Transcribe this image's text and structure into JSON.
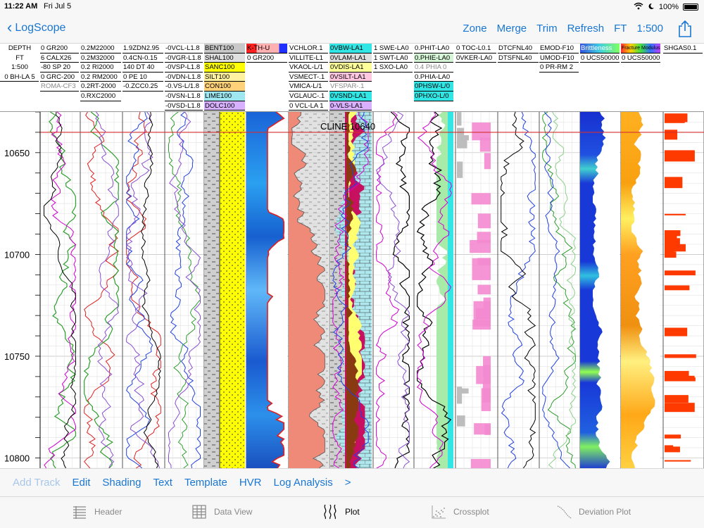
{
  "status_bar": {
    "time": "11:22 AM",
    "date": "Fri Jul 5",
    "battery": "100%"
  },
  "navbar": {
    "back_label": "LogScope",
    "actions": [
      "Zone",
      "Merge",
      "Trim",
      "Refresh",
      "FT",
      "1:500"
    ]
  },
  "depth_header": {
    "lines": [
      "DEPTH",
      "FT",
      "1:500",
      "0  BH-LA 5"
    ]
  },
  "header_columns": [
    {
      "cells": [
        "0     GR200",
        "6   CALX26",
        "-80    SP  20",
        "0  GRC-200",
        "ROMA-CF3"
      ]
    },
    {
      "cells": [
        "0.2M22000",
        "0.2M32000",
        "0.2   RI2000",
        "0.2   RM2000",
        "0.2RT-2000",
        "0.RXC2000"
      ]
    },
    {
      "cells": [
        "1.9ZDN2.95",
        "0.4CN-0.15",
        "140   DT   40",
        "0     PE    10",
        "-0.ZCC0.25"
      ]
    },
    {
      "cells": [
        "-0VCL-L1.8",
        "-0VGR-L1.8",
        "-0VSP-L1.8",
        "-0VDN-L1.8",
        "-0.VS-L/1.8",
        "-0VSN-L1.8",
        "-0VSD-L1.8"
      ]
    },
    {
      "cells": [
        "BENT100",
        "SHAL100",
        "SANC100",
        "SILT100",
        "CON100",
        "LIME100",
        "DOLC100"
      ]
    },
    {
      "cells": [
        "K-TH-U",
        "0      GR200"
      ]
    },
    {
      "cells": [
        "VCHLOR.1",
        "VILLITE-L1",
        "VKAOL-L/1",
        "VSMECT-.1",
        "VMICA-L/1",
        "VGLAUC-.1",
        "0  VCL-LA 1"
      ]
    },
    {
      "cells": [
        "0VBW-LA1",
        "0VLAM-LA1",
        "0VDIS-LA1",
        "0VSILT-LA1",
        "VFSPAR-.1",
        "0VSND-LA1",
        "0-VLS-LA1"
      ]
    },
    {
      "cells": [
        "1  SWE-LA0",
        "1  SWT-LA0",
        "1  SXO-LA0"
      ]
    },
    {
      "cells": [
        "0.PHIT-LA0",
        "0.PHIE-LA0",
        "0.4  PHIA  0",
        "0.PHIA-LA0",
        "0PHSW-L/0",
        "0PHXO-L/0"
      ]
    },
    {
      "cells": [
        "0  TOC-L0.1",
        "0VKER-LA0"
      ]
    },
    {
      "cells": [
        "DTCFNL40",
        "DTSFNL40"
      ]
    },
    {
      "cells": [
        "EMOD-F10",
        "UMOD-F10",
        "0   PR-RM 2"
      ]
    },
    {
      "cells": [
        "Brittleness",
        "0  UCS50000"
      ]
    },
    {
      "cells": [
        "Fracture Modulus",
        "0 UCS50000"
      ]
    },
    {
      "cells": [
        "SHGAS0.1"
      ]
    }
  ],
  "plot": {
    "depth_labels": [
      "10650",
      "10700",
      "10750",
      "10800"
    ],
    "zone_label": "CLINE 10640",
    "marker_depth": 10640,
    "depth_top": 10630,
    "depth_bottom": 10805
  },
  "bottom_toolbar": [
    "Add Track",
    "Edit",
    "Shading",
    "Text",
    "Template",
    "HVR",
    "Log Analysis",
    ">"
  ],
  "tabs": [
    {
      "label": "Header",
      "icon": "list-icon",
      "active": false
    },
    {
      "label": "Data View",
      "icon": "table-icon",
      "active": false
    },
    {
      "label": "Plot",
      "icon": "curves-icon",
      "active": true
    },
    {
      "label": "Crossplot",
      "icon": "scatter-icon",
      "active": false
    },
    {
      "label": "Deviation Plot",
      "icon": "deviation-icon",
      "active": false
    }
  ],
  "colors": {
    "accent": "#1976d2",
    "marker_line": "#d32f2f",
    "lithology_yellow": "#ffff00",
    "porosity_cyan": "#33e6e6"
  }
}
